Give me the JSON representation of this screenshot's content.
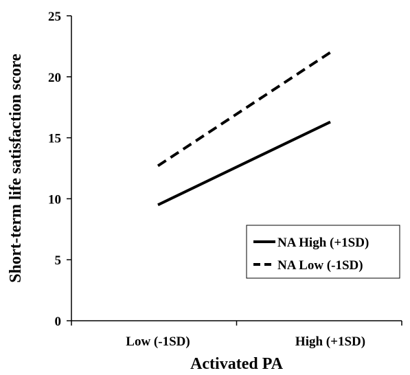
{
  "chart_data": {
    "type": "line",
    "title": "",
    "xlabel": "Activated PA",
    "ylabel": "Short-term life satisfaction score",
    "categories": [
      "Low (-1SD)",
      "High (+1SD)"
    ],
    "ylim": [
      0,
      25
    ],
    "yticks": [
      0,
      5,
      10,
      15,
      20,
      25
    ],
    "grid": false,
    "legend_position": "right",
    "series": [
      {
        "name": "NA High (+1SD)",
        "values": [
          9.5,
          16.3
        ],
        "style": "solid",
        "color": "#000000"
      },
      {
        "name": "NA Low (-1SD)",
        "values": [
          12.7,
          22.0
        ],
        "style": "dashed",
        "color": "#000000"
      }
    ]
  }
}
